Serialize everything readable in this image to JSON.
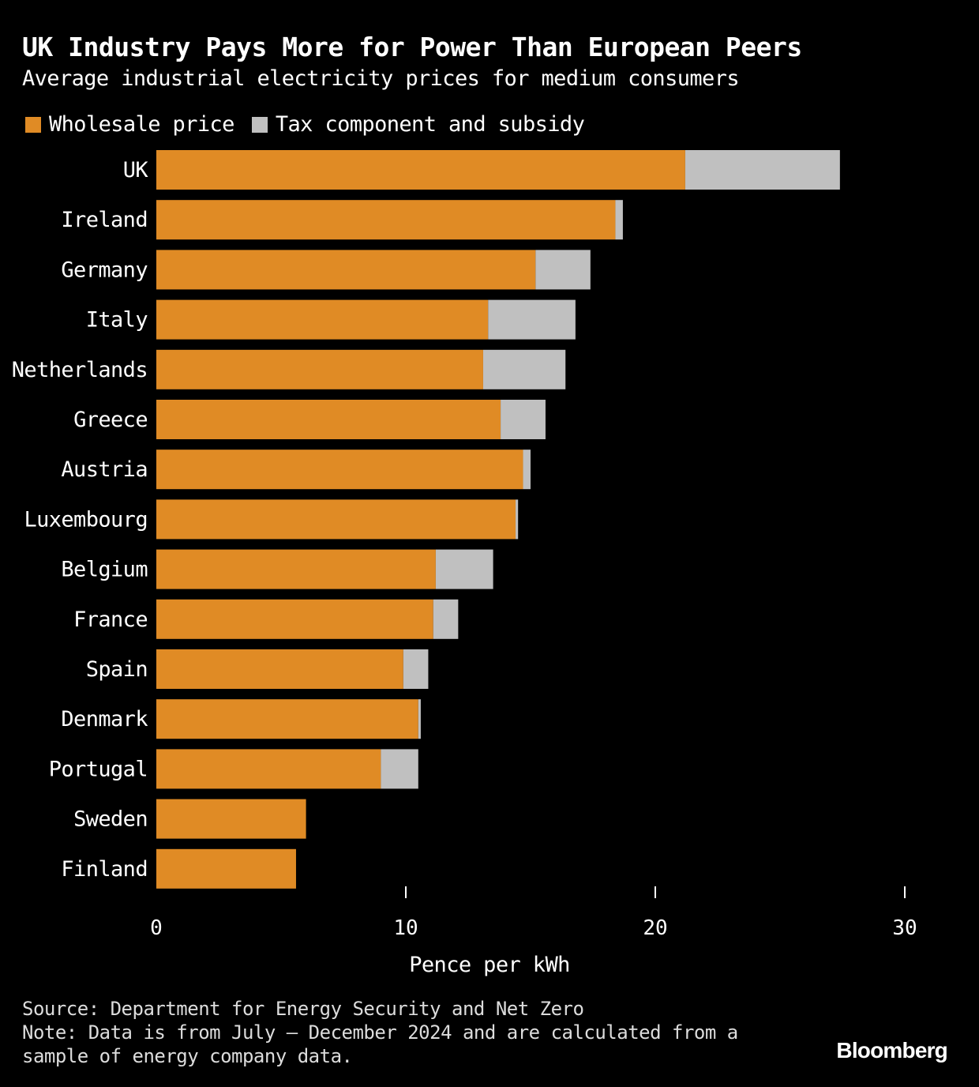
{
  "header": {
    "title": "UK Industry Pays More for Power Than European Peers",
    "subtitle": "Average industrial electricity prices for medium consumers"
  },
  "legend": {
    "wholesale_label": "Wholesale price",
    "tax_label": "Tax component and subsidy"
  },
  "colors": {
    "wholesale": "#e08b25",
    "tax": "#c0c0c0",
    "background": "#000000",
    "text": "#ffffff"
  },
  "chart_data": {
    "type": "bar",
    "orientation": "horizontal",
    "stacked": true,
    "title": "UK Industry Pays More for Power Than European Peers",
    "subtitle": "Average industrial electricity prices for medium consumers",
    "xlabel": "Pence per kWh",
    "ylabel": "",
    "xlim": [
      0,
      30
    ],
    "xticks": [
      0,
      10,
      20,
      30
    ],
    "grid": false,
    "legend_position": "top-left",
    "categories": [
      "UK",
      "Ireland",
      "Germany",
      "Italy",
      "Netherlands",
      "Greece",
      "Austria",
      "Luxembourg",
      "Belgium",
      "France",
      "Spain",
      "Denmark",
      "Portugal",
      "Sweden",
      "Finland"
    ],
    "series": [
      {
        "name": "Wholesale price",
        "values": [
          21.2,
          18.4,
          15.2,
          13.3,
          13.1,
          13.8,
          14.7,
          14.4,
          11.2,
          11.1,
          9.9,
          10.5,
          9.0,
          6.0,
          5.6
        ]
      },
      {
        "name": "Tax component and subsidy",
        "values": [
          6.2,
          0.3,
          2.2,
          3.5,
          3.3,
          1.8,
          0.3,
          0.1,
          2.3,
          1.0,
          1.0,
          0.1,
          1.5,
          0.0,
          0.0
        ]
      }
    ]
  },
  "footer": {
    "source": "Source: Department for Energy Security and Net Zero",
    "note_line1": "Note: Data is from July – December 2024 and are calculated from a",
    "note_line2": "sample of energy company data.",
    "brand": "Bloomberg"
  }
}
